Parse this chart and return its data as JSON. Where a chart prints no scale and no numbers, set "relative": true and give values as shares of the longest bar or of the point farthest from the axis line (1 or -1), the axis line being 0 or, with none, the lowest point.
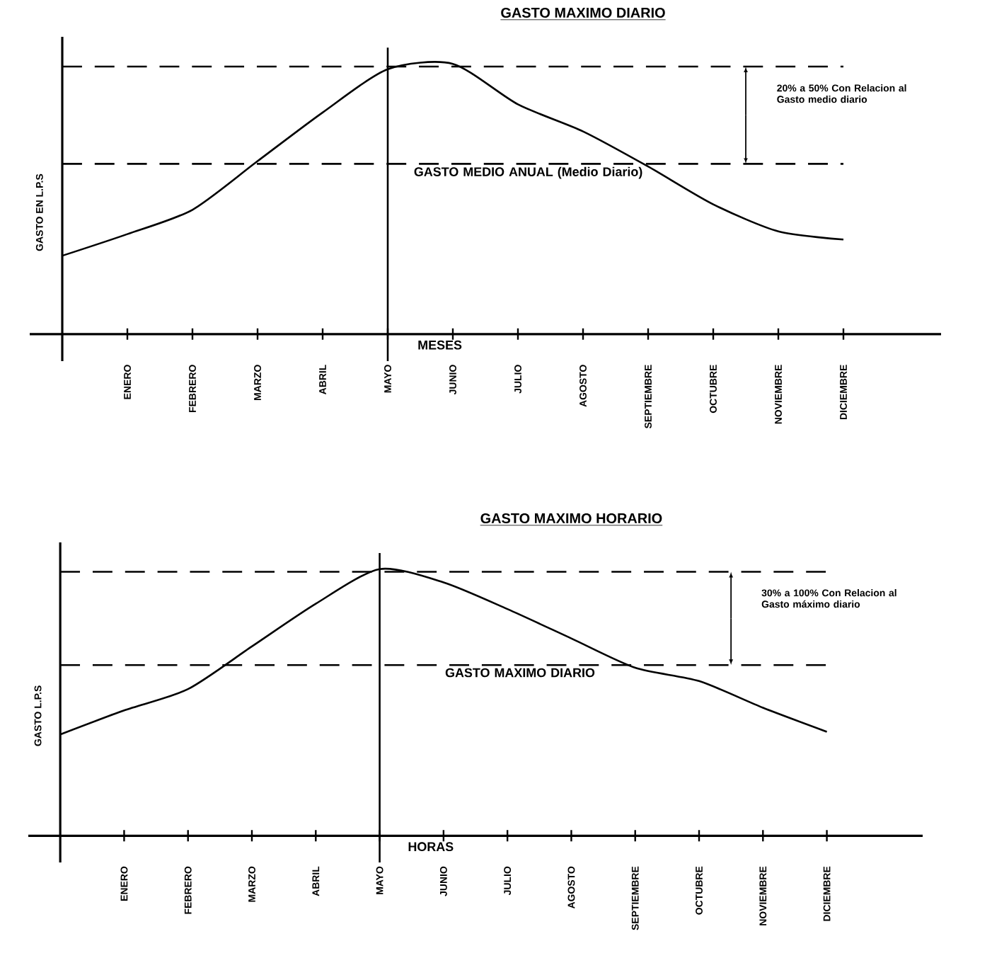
{
  "chart_data": [
    {
      "type": "line",
      "title": "GASTO MAXIMO DIARIO",
      "xlabel": "MESES",
      "ylabel": "GASTO EN L.P.S",
      "categories": [
        null,
        "ENERO",
        "FEBRERO",
        "MARZO",
        "ABRIL",
        "MAYO",
        "JUNIO",
        "JULIO",
        "AGOSTO",
        "SEPTIEMBRE",
        "OCTUBRE",
        "NOVIEMBRE",
        "DICIEMBRE"
      ],
      "relative": true,
      "series": [
        {
          "color": "#000000",
          "values": [
            0.29,
            0.37,
            0.46,
            0.64,
            0.82,
            0.98,
            1.0,
            0.85,
            0.75,
            0.62,
            0.48,
            0.38,
            0.35
          ]
        }
      ],
      "ref_lines": [
        {
          "axis": "y",
          "value": 0.99,
          "line_style": "dashed"
        },
        {
          "axis": "y",
          "value": 0.63,
          "label": "GASTO MEDIO ANUAL (Medio Diario)",
          "line_style": "dashed"
        },
        {
          "axis": "x",
          "value": "MAYO",
          "line_style": "solid"
        }
      ],
      "annotations": [
        "20% a 50% Con Relacion al Gasto medio diario"
      ],
      "line_style": "solid",
      "marker": "none",
      "grid": false
    },
    {
      "type": "line",
      "title": "GASTO MAXIMO HORARIO",
      "xlabel": "HORAS",
      "ylabel": "GASTO L.P.S",
      "categories": [
        null,
        "ENERO",
        "FEBRERO",
        "MARZO",
        "ABRIL",
        "MAYO",
        "JUNIO",
        "JULIO",
        "AGOSTO",
        "SEPTIEMBRE",
        "OCTUBRE",
        "NOVIEMBRE",
        "DICIEMBRE"
      ],
      "relative": true,
      "series": [
        {
          "color": "#000000",
          "values": [
            0.38,
            0.47,
            0.55,
            0.71,
            0.87,
            1.0,
            0.95,
            0.85,
            0.74,
            0.63,
            0.58,
            0.48,
            0.39
          ]
        }
      ],
      "ref_lines": [
        {
          "axis": "y",
          "value": 0.99,
          "line_style": "dashed"
        },
        {
          "axis": "y",
          "value": 0.64,
          "label": "GASTO MAXIMO DIARIO",
          "line_style": "dashed"
        },
        {
          "axis": "x",
          "value": "MAYO",
          "line_style": "solid"
        }
      ],
      "annotations": [
        "30% a 100% Con Relacion al Gasto máximo diario"
      ],
      "line_style": "solid",
      "marker": "none",
      "grid": false
    }
  ]
}
